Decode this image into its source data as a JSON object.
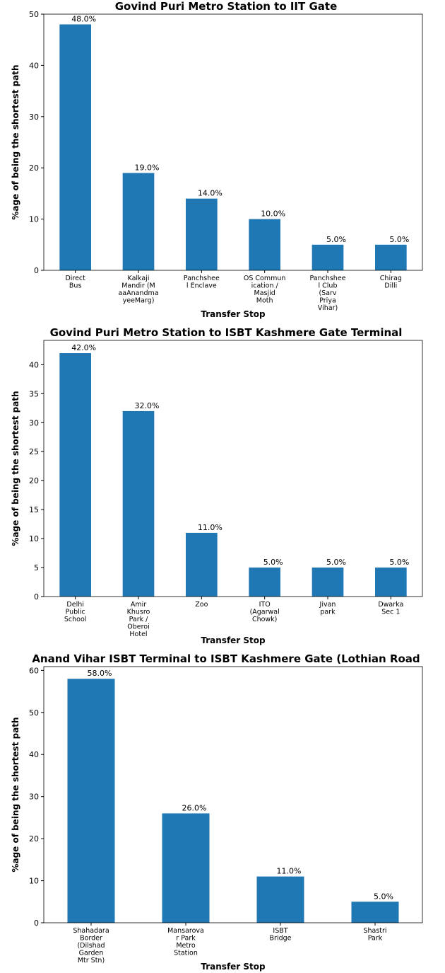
{
  "chart_data": [
    {
      "type": "bar",
      "title": "Govind Puri Metro Station to IIT Gate",
      "xlabel": "Transfer Stop",
      "ylabel": "%age of being the shortest path",
      "categories": [
        "Direct\nBus",
        "Kalkaji\nMandir (M\naaAnandma\nyeeMarg)",
        "Panchshee\nl Enclave",
        "OS Commun\nication /\nMasjid\nMoth",
        "Panchshee\nl Club\n(Sarv\nPriya\nVihar)",
        "Chirag\nDilli"
      ],
      "values": [
        48,
        19,
        14,
        10,
        5,
        5
      ],
      "value_labels": [
        "48.0%",
        "19.0%",
        "14.0%",
        "10.0%",
        "5.0%",
        "5.0%"
      ],
      "color": "#1f77b4",
      "ylim": [
        0,
        50
      ],
      "yticks": [
        0,
        10,
        20,
        30,
        40,
        50
      ]
    },
    {
      "type": "bar",
      "title": "Govind Puri Metro Station to ISBT Kashmere Gate Terminal",
      "xlabel": "Transfer Stop",
      "ylabel": "%age of being the shortest path",
      "categories": [
        "Delhi\nPublic\nSchool",
        "Amir\nKhusro\nPark /\nOberoi\nHotel",
        "Zoo",
        "ITO\n(Agarwal\nChowk)",
        "Jivan\npark",
        "Dwarka\nSec 1"
      ],
      "values": [
        42,
        32,
        11,
        5,
        5,
        5
      ],
      "value_labels": [
        "42.0%",
        "32.0%",
        "11.0%",
        "5.0%",
        "5.0%",
        "5.0%"
      ],
      "color": "#1f77b4",
      "ylim": [
        0,
        44.2
      ],
      "yticks": [
        0,
        5,
        10,
        15,
        20,
        25,
        30,
        35,
        40
      ]
    },
    {
      "type": "bar",
      "title": "Anand Vihar ISBT Terminal to ISBT Kashmere Gate (Lothian Road",
      "xlabel": "Transfer Stop",
      "ylabel": "%age of being the shortest path",
      "categories": [
        "Shahadara\nBorder\n(Dilshad\nGarden\nMtr Stn)",
        "Mansarova\nr Park\nMetro\nStation",
        "ISBT\nBridge",
        "Shastri\nPark"
      ],
      "values": [
        58,
        26,
        11,
        5
      ],
      "value_labels": [
        "58.0%",
        "26.0%",
        "11.0%",
        "5.0%"
      ],
      "color": "#1f77b4",
      "ylim": [
        0,
        60.9
      ],
      "yticks": [
        0,
        10,
        20,
        30,
        40,
        50,
        60
      ]
    }
  ]
}
